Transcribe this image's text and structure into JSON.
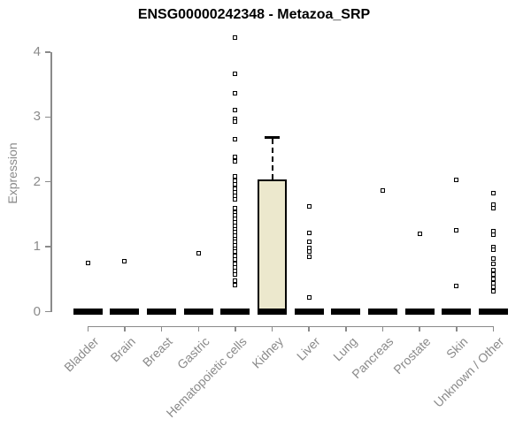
{
  "chart_data": {
    "type": "boxplot",
    "title": "ENSG00000242348 - Metazoa_SRP",
    "ylabel": "Expression",
    "xlabel": "",
    "ylim": [
      0,
      4.3
    ],
    "yticks": [
      0,
      1,
      2,
      3,
      4
    ],
    "grid": false,
    "legend": false,
    "colors": {
      "box_fill": "#ece8cd",
      "box_border": "#000000",
      "axis": "#8a8a8a",
      "title_text": "#000000",
      "outlier_fill": "#ffffff"
    },
    "categories": [
      "Bladder",
      "Brain",
      "Breast",
      "Gastric",
      "Hematopoietic cells",
      "Kidney",
      "Liver",
      "Lung",
      "Pancreas",
      "Prostate",
      "Skin",
      "Unknown / Other"
    ],
    "boxes": [
      {
        "category": "Bladder",
        "q1": 0,
        "median": 0,
        "q3": 0,
        "whisker_low": 0,
        "whisker_high": 0,
        "outliers": [
          0.75
        ]
      },
      {
        "category": "Brain",
        "q1": 0,
        "median": 0,
        "q3": 0,
        "whisker_low": 0,
        "whisker_high": 0,
        "outliers": [
          0.78
        ]
      },
      {
        "category": "Breast",
        "q1": 0,
        "median": 0,
        "q3": 0,
        "whisker_low": 0,
        "whisker_high": 0,
        "outliers": []
      },
      {
        "category": "Gastric",
        "q1": 0,
        "median": 0,
        "q3": 0,
        "whisker_low": 0,
        "whisker_high": 0,
        "outliers": [
          0.9
        ]
      },
      {
        "category": "Hematopoietic cells",
        "q1": 0,
        "median": 0,
        "q3": 0,
        "whisker_low": 0,
        "whisker_high": 0,
        "outliers": [
          4.22,
          3.66,
          3.37,
          3.1,
          2.97,
          2.93,
          2.65,
          2.39,
          2.31,
          2.09,
          2.01,
          1.96,
          1.9,
          1.84,
          1.78,
          1.73,
          1.6,
          1.53,
          1.48,
          1.43,
          1.38,
          1.32,
          1.27,
          1.22,
          1.17,
          1.12,
          1.07,
          1.02,
          0.97,
          0.92,
          0.86,
          0.8,
          0.74,
          0.68,
          0.62,
          0.57,
          0.48,
          0.41
        ]
      },
      {
        "category": "Kidney",
        "q1": 0,
        "median": 0,
        "q3": 2.03,
        "whisker_low": 0,
        "whisker_high": 2.7,
        "outliers": []
      },
      {
        "category": "Liver",
        "q1": 0,
        "median": 0,
        "q3": 0,
        "whisker_low": 0,
        "whisker_high": 0,
        "outliers": [
          1.62,
          1.21,
          1.07,
          0.98,
          0.92,
          0.84,
          0.22
        ]
      },
      {
        "category": "Lung",
        "q1": 0,
        "median": 0,
        "q3": 0,
        "whisker_low": 0,
        "whisker_high": 0,
        "outliers": []
      },
      {
        "category": "Pancreas",
        "q1": 0,
        "median": 0,
        "q3": 0,
        "whisker_low": 0,
        "whisker_high": 0,
        "outliers": [
          1.87
        ]
      },
      {
        "category": "Prostate",
        "q1": 0,
        "median": 0,
        "q3": 0,
        "whisker_low": 0,
        "whisker_high": 0,
        "outliers": [
          1.2
        ]
      },
      {
        "category": "Skin",
        "q1": 0,
        "median": 0,
        "q3": 0,
        "whisker_low": 0,
        "whisker_high": 0,
        "outliers": [
          2.03,
          1.26,
          0.4
        ]
      },
      {
        "category": "Unknown / Other",
        "q1": 0,
        "median": 0,
        "q3": 0,
        "whisker_low": 0,
        "whisker_high": 0,
        "outliers": [
          1.82,
          1.65,
          1.59,
          1.24,
          1.18,
          1.0,
          0.96,
          0.82,
          0.74,
          0.64,
          0.57,
          0.5,
          0.44,
          0.38,
          0.32
        ]
      }
    ]
  }
}
